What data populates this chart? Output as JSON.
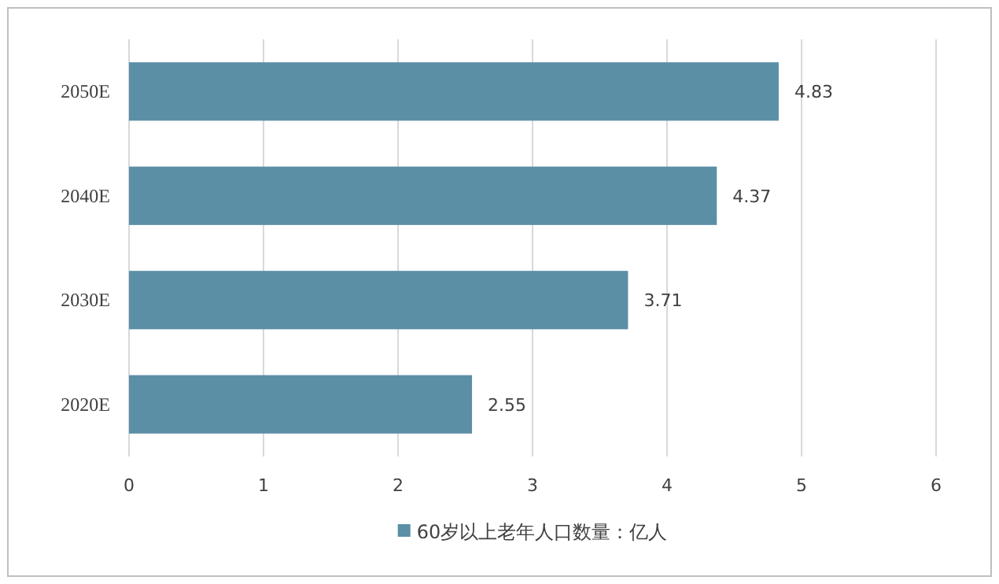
{
  "chart_data": {
    "type": "bar",
    "orientation": "horizontal",
    "categories": [
      "2050E",
      "2040E",
      "2030E",
      "2020E"
    ],
    "series": [
      {
        "name": "60岁以上老年人口数量：亿人",
        "color": "#5b8fa6",
        "values": [
          4.83,
          4.37,
          3.71,
          2.55
        ]
      }
    ],
    "xlim": [
      0,
      6
    ],
    "xticks": [
      0,
      1,
      2,
      3,
      4,
      5,
      6
    ],
    "grid": "x",
    "legend": "bottom",
    "data_labels": true
  }
}
